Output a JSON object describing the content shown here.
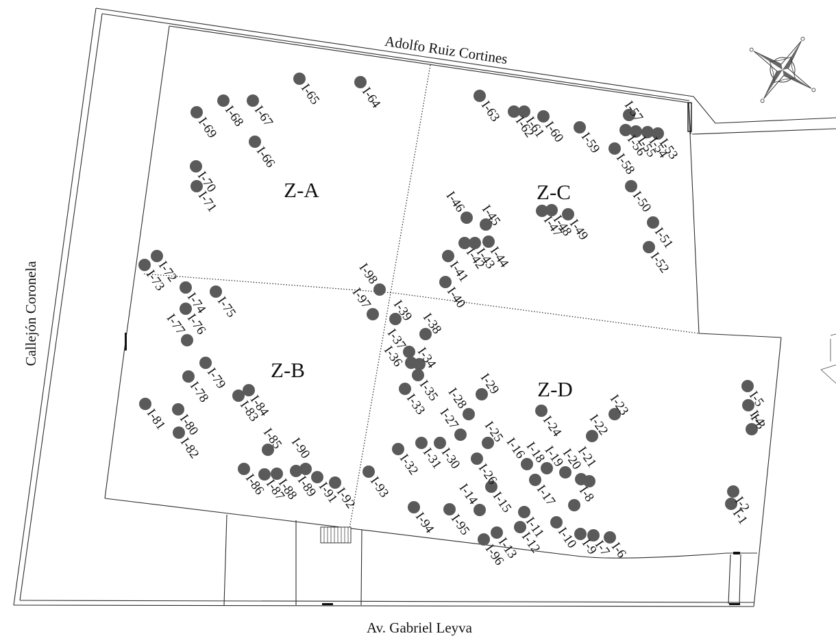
{
  "streets": {
    "top": "Adolfo Ruiz Cortines",
    "left": "Callejón Coronela",
    "bottom": "Av. Gabriel Leyva"
  },
  "zones": {
    "a": "Z-A",
    "b": "Z-B",
    "c": "Z-C",
    "d": "Z-D"
  },
  "icons": {
    "compass": "compass-rose-icon"
  },
  "colors": {
    "marker": "#5a5a5a",
    "line": "#2b2b2b",
    "text": "#111111"
  },
  "trees": [
    "I-1",
    "I-2",
    "I-3",
    "I-4",
    "I-5",
    "I-6",
    "I-7",
    "I-8",
    "I-9",
    "I-10",
    "I-11",
    "I-12",
    "I-13",
    "I-14",
    "I-15",
    "I-16",
    "I-17",
    "I-18",
    "I-19",
    "I-20",
    "I-21",
    "I-22",
    "I-23",
    "I-24",
    "I-25",
    "I-26",
    "I-27",
    "I-28",
    "I-29",
    "I-30",
    "I-31",
    "I-32",
    "I-33",
    "I-34",
    "I-35",
    "I-36",
    "I-37",
    "I-38",
    "I-39",
    "I-40",
    "I-41",
    "I-42",
    "I-43",
    "I-44",
    "I-45",
    "I-46",
    "I-47",
    "I-48",
    "I-49",
    "I-50",
    "I-51",
    "I-52",
    "I-53",
    "I-54",
    "I-55",
    "I-56",
    "I-57",
    "I-58",
    "I-59",
    "I-60",
    "I-61",
    "I-62",
    "I-63",
    "I-64",
    "I-65",
    "I-66",
    "I-67",
    "I-68",
    "I-69",
    "I-70",
    "I-71",
    "I-72",
    "I-73",
    "I-74",
    "I-75",
    "I-76",
    "I-77",
    "I-78",
    "I-79",
    "I-80",
    "I-81",
    "I-82",
    "I-83",
    "I-84",
    "I-85",
    "I-86",
    "I-87",
    "I-88",
    "I-89",
    "I-90",
    "I-91",
    "I-92",
    "I-93",
    "I-94",
    "I-95",
    "I-96",
    "I-97",
    "I-98"
  ]
}
